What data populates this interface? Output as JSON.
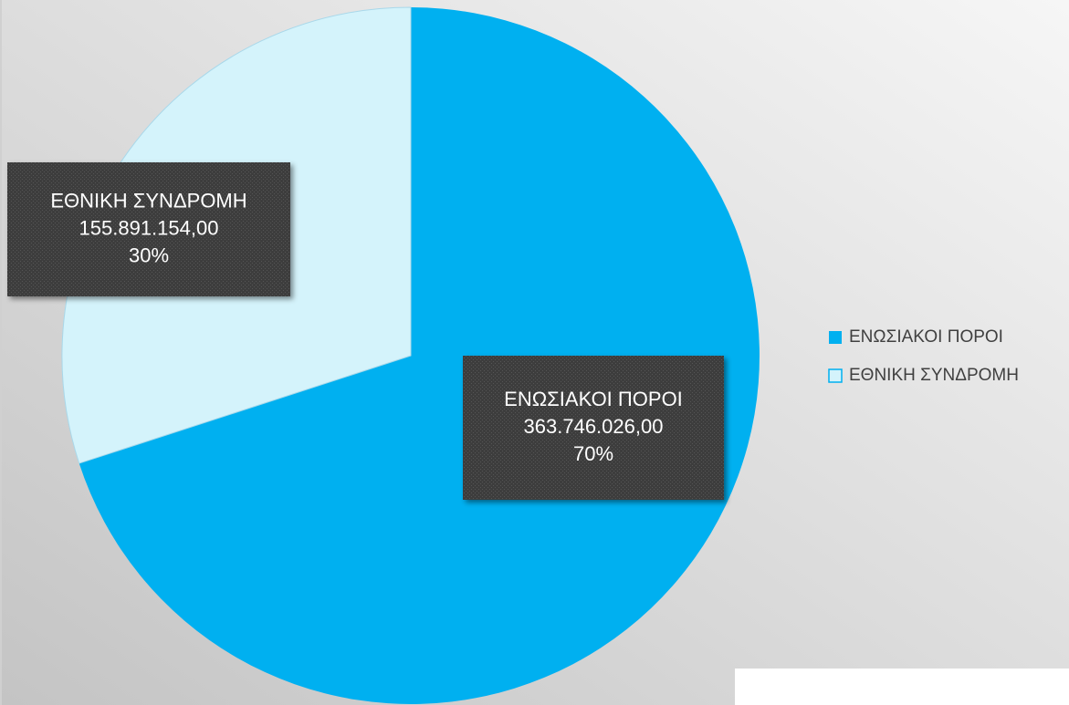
{
  "chart_data": {
    "type": "pie",
    "categories": [
      "ΕΝΩΣΙΑΚΟΙ ΠΟΡΟΙ",
      "ΕΘΝΙΚΗ ΣΥΝΔΡΟΜΗ"
    ],
    "values": [
      363746026,
      155891154
    ],
    "value_labels": [
      "363.746.026,00",
      "155.891.154,00"
    ],
    "percents": [
      70,
      30
    ],
    "percent_labels": [
      "70%",
      "30%"
    ],
    "colors": [
      "#00b0f0",
      "#d4f3fb"
    ],
    "legend": "right"
  }
}
